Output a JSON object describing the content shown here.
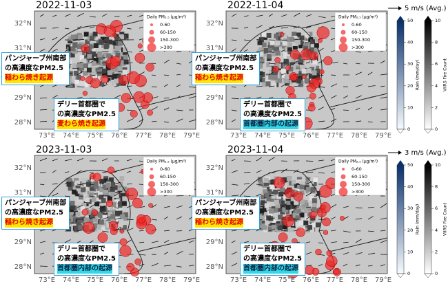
{
  "panels": [
    {
      "date": "2022-11-03",
      "annotations": [
        {
          "lines": [
            "パンジャーブ州南部",
            "の高濃度なPM2.5",
            "稲わら焼き起源"
          ],
          "style": "yellow"
        },
        {
          "lines": [
            "デリー首都圏で",
            "の高濃度なPM2.5",
            "麦わら焼き起源"
          ],
          "style": "yellow"
        }
      ]
    },
    {
      "date": "2022-11-04",
      "annotations": [
        {
          "lines": [
            "パンジャーブ州南部",
            "の高濃度なPM2.5",
            "稲わら焼き起源"
          ],
          "style": "yellow"
        },
        {
          "lines": [
            "デリー首都圏で",
            "の高濃度なPM2.5",
            "首都圏内部の起源"
          ],
          "style": "cyan"
        }
      ]
    },
    {
      "date": "2023-11-03",
      "annotations": [
        {
          "lines": [
            "パンジャーブ州南部",
            "の高濃度なPM2.5",
            "稲わら焼き起源"
          ],
          "style": "yellow"
        },
        {
          "lines": [
            "デリー首都圏で",
            "の高濃度なPM2.5",
            "首都圏内部の起源"
          ],
          "style": "cyan"
        }
      ]
    },
    {
      "date": "2023-11-04",
      "annotations": [
        {
          "lines": [
            "パンジャーブ州南部",
            "の高濃度なPM2.5",
            "稲わら焼き起源"
          ],
          "style": "yellow"
        },
        {
          "lines": [
            "デリー首都圏で",
            "の高濃度なPM2.5",
            "首都圏内部の起源"
          ],
          "style": "cyan"
        }
      ]
    }
  ],
  "lat_labels": [
    "32°N",
    "31°N",
    "30°N",
    "29°N",
    "28°N"
  ],
  "lon_labels": [
    "73°E",
    "74°E",
    "75°E",
    "76°E",
    "77°E",
    "78°E",
    "79°E"
  ],
  "legend": {
    "title": "Daily PM₂.₅ (μg/m³)",
    "items": [
      "0-60",
      "60-150",
      "150-300",
      ">300"
    ]
  },
  "wind_refs": [
    "5 m/s (Avg.)",
    "3 m/s (Avg.)"
  ],
  "colorbars": [
    {
      "label": "Rain (mm/day)",
      "ticks": [
        0,
        10,
        20,
        30,
        40,
        50
      ],
      "color": "#08306b"
    },
    {
      "label": "VIIRS Fire Count",
      "ticks": [
        0,
        2,
        4,
        6,
        8,
        10
      ],
      "color": "#000000"
    }
  ]
}
